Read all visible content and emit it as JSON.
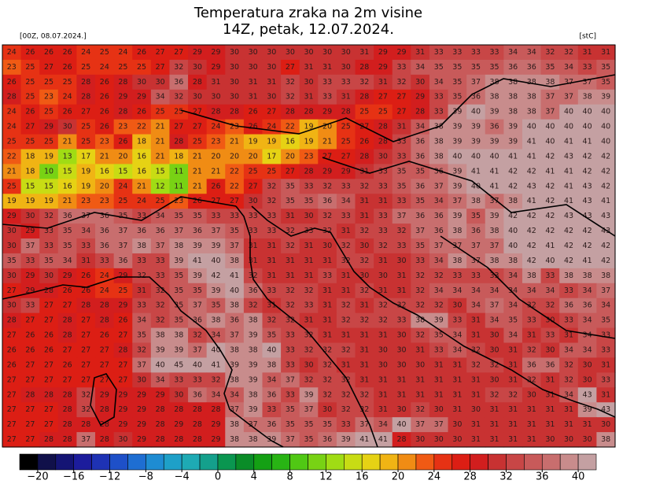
{
  "header": {
    "title_line1": "Temperatura zraka na 2m visine",
    "title_line2": "14Z, petak, 12.07.2024.",
    "run_label": "[00Z, 08.07.2024.]",
    "unit_label": "[stC]"
  },
  "map": {
    "temperature_grid": [
      [
        24,
        26,
        26,
        26,
        24,
        25,
        24,
        26,
        27,
        27,
        29,
        29,
        30,
        30,
        30,
        30,
        30,
        30,
        30,
        31,
        29,
        29,
        31,
        33,
        33,
        33,
        33,
        34,
        34,
        32,
        32,
        31,
        31
      ],
      [
        23,
        25,
        27,
        26,
        25,
        24,
        25,
        25,
        27,
        32,
        30,
        29,
        30,
        30,
        30,
        27,
        31,
        31,
        30,
        28,
        29,
        33,
        34,
        35,
        35,
        35,
        35,
        36,
        36,
        35,
        34,
        33,
        35
      ],
      [
        26,
        25,
        25,
        25,
        28,
        26,
        28,
        30,
        30,
        36,
        28,
        31,
        30,
        31,
        31,
        32,
        30,
        33,
        33,
        32,
        31,
        32,
        30,
        34,
        35,
        37,
        38,
        38,
        38,
        38,
        37,
        37,
        35
      ],
      [
        28,
        25,
        23,
        24,
        28,
        26,
        29,
        29,
        34,
        32,
        30,
        30,
        30,
        31,
        30,
        32,
        31,
        33,
        31,
        28,
        27,
        27,
        29,
        33,
        35,
        36,
        38,
        38,
        38,
        37,
        37,
        38,
        39
      ],
      [
        24,
        26,
        25,
        26,
        27,
        26,
        28,
        26,
        25,
        25,
        27,
        28,
        28,
        26,
        27,
        28,
        28,
        29,
        28,
        25,
        25,
        27,
        28,
        33,
        39,
        40,
        39,
        38,
        38,
        37,
        40,
        40,
        40
      ],
      [
        24,
        27,
        29,
        30,
        25,
        26,
        23,
        22,
        21,
        27,
        27,
        24,
        23,
        26,
        24,
        22,
        19,
        20,
        25,
        27,
        28,
        31,
        34,
        38,
        39,
        39,
        36,
        39,
        40,
        40,
        40,
        40,
        40
      ],
      [
        25,
        25,
        25,
        21,
        25,
        23,
        26,
        18,
        21,
        28,
        25,
        23,
        21,
        19,
        19,
        16,
        19,
        21,
        25,
        26,
        28,
        33,
        36,
        38,
        39,
        39,
        39,
        39,
        41,
        40,
        41,
        41,
        40
      ],
      [
        22,
        18,
        19,
        13,
        17,
        21,
        20,
        16,
        21,
        18,
        21,
        20,
        20,
        20,
        17,
        20,
        23,
        27,
        27,
        28,
        30,
        33,
        36,
        38,
        40,
        40,
        40,
        41,
        41,
        42,
        43,
        42,
        42
      ],
      [
        21,
        18,
        10,
        15,
        19,
        16,
        15,
        16,
        15,
        11,
        21,
        21,
        22,
        25,
        25,
        27,
        28,
        29,
        29,
        31,
        33,
        35,
        35,
        36,
        39,
        41,
        41,
        42,
        42,
        41,
        41,
        42,
        42
      ],
      [
        25,
        15,
        15,
        16,
        19,
        20,
        24,
        21,
        12,
        11,
        21,
        26,
        22,
        27,
        32,
        35,
        33,
        32,
        33,
        32,
        33,
        35,
        36,
        37,
        39,
        40,
        41,
        42,
        43,
        42,
        41,
        43,
        42
      ],
      [
        19,
        19,
        19,
        21,
        23,
        23,
        25,
        24,
        25,
        23,
        26,
        27,
        27,
        30,
        32,
        35,
        35,
        36,
        34,
        31,
        31,
        33,
        35,
        34,
        37,
        38,
        37,
        38,
        41,
        42,
        41,
        43,
        41
      ],
      [
        29,
        30,
        32,
        36,
        37,
        36,
        35,
        33,
        34,
        35,
        35,
        33,
        33,
        33,
        33,
        31,
        30,
        32,
        33,
        31,
        33,
        37,
        36,
        36,
        39,
        35,
        39,
        42,
        42,
        42,
        43,
        43,
        43
      ],
      [
        30,
        29,
        33,
        35,
        34,
        36,
        37,
        36,
        36,
        37,
        36,
        37,
        35,
        33,
        33,
        32,
        33,
        32,
        31,
        32,
        33,
        32,
        37,
        36,
        38,
        36,
        38,
        40,
        42,
        42,
        42,
        42,
        43
      ],
      [
        30,
        37,
        33,
        35,
        33,
        36,
        37,
        38,
        37,
        38,
        39,
        39,
        37,
        31,
        31,
        32,
        31,
        30,
        32,
        30,
        32,
        33,
        35,
        37,
        37,
        37,
        37,
        40,
        42,
        41,
        42,
        42,
        42
      ],
      [
        35,
        33,
        35,
        34,
        31,
        33,
        36,
        33,
        33,
        39,
        41,
        40,
        38,
        31,
        31,
        31,
        31,
        31,
        32,
        32,
        31,
        30,
        33,
        34,
        38,
        37,
        38,
        38,
        42,
        40,
        42,
        41,
        42
      ],
      [
        30,
        29,
        30,
        29,
        26,
        24,
        29,
        32,
        33,
        35,
        39,
        42,
        41,
        32,
        31,
        31,
        31,
        33,
        31,
        30,
        30,
        31,
        32,
        32,
        33,
        33,
        33,
        34,
        38,
        33,
        38,
        38,
        38
      ],
      [
        27,
        29,
        28,
        26,
        26,
        24,
        25,
        31,
        32,
        35,
        35,
        39,
        40,
        36,
        33,
        32,
        32,
        31,
        31,
        32,
        31,
        31,
        32,
        34,
        34,
        34,
        34,
        34,
        34,
        34,
        33,
        34,
        37
      ],
      [
        30,
        33,
        27,
        27,
        28,
        28,
        29,
        33,
        32,
        35,
        37,
        35,
        38,
        32,
        31,
        32,
        33,
        31,
        32,
        31,
        32,
        32,
        32,
        32,
        30,
        34,
        37,
        34,
        32,
        32,
        36,
        36,
        34
      ],
      [
        28,
        27,
        27,
        28,
        27,
        28,
        26,
        34,
        32,
        35,
        36,
        38,
        36,
        38,
        32,
        32,
        31,
        31,
        32,
        32,
        32,
        33,
        38,
        39,
        33,
        31,
        34,
        35,
        33,
        30,
        33,
        34,
        35
      ],
      [
        27,
        26,
        26,
        28,
        27,
        26,
        27,
        35,
        38,
        38,
        32,
        34,
        37,
        39,
        35,
        33,
        32,
        31,
        31,
        31,
        31,
        30,
        32,
        35,
        34,
        31,
        30,
        34,
        31,
        33,
        31,
        34,
        33
      ],
      [
        26,
        26,
        26,
        27,
        27,
        27,
        28,
        32,
        39,
        39,
        37,
        40,
        38,
        38,
        40,
        33,
        32,
        32,
        32,
        31,
        30,
        30,
        31,
        33,
        34,
        32,
        30,
        31,
        32,
        30,
        34,
        34,
        33
      ],
      [
        26,
        27,
        27,
        26,
        27,
        27,
        27,
        37,
        40,
        45,
        40,
        41,
        39,
        39,
        38,
        33,
        30,
        32,
        31,
        31,
        30,
        30,
        30,
        31,
        31,
        32,
        32,
        31,
        36,
        36,
        32,
        30,
        31
      ],
      [
        27,
        27,
        27,
        27,
        27,
        27,
        27,
        30,
        34,
        33,
        33,
        32,
        38,
        39,
        34,
        37,
        32,
        32,
        32,
        31,
        31,
        31,
        31,
        31,
        31,
        31,
        30,
        31,
        32,
        31,
        32,
        30,
        33
      ],
      [
        27,
        28,
        28,
        28,
        32,
        29,
        29,
        29,
        29,
        30,
        36,
        34,
        34,
        38,
        36,
        33,
        39,
        32,
        32,
        32,
        31,
        31,
        31,
        31,
        31,
        31,
        32,
        32,
        30,
        31,
        34,
        43,
        31
      ],
      [
        27,
        27,
        27,
        28,
        32,
        28,
        29,
        29,
        28,
        28,
        28,
        28,
        37,
        39,
        33,
        35,
        37,
        30,
        32,
        32,
        31,
        30,
        32,
        30,
        31,
        30,
        31,
        31,
        31,
        31,
        31,
        39,
        43
      ],
      [
        27,
        27,
        27,
        28,
        28,
        28,
        29,
        29,
        28,
        29,
        28,
        29,
        38,
        37,
        36,
        35,
        35,
        35,
        33,
        37,
        34,
        40,
        37,
        37,
        30,
        31,
        31,
        31,
        31,
        31,
        31,
        31,
        30
      ],
      [
        27,
        27,
        28,
        28,
        37,
        28,
        30,
        29,
        28,
        28,
        28,
        29,
        38,
        38,
        39,
        37,
        35,
        36,
        39,
        41,
        41,
        28,
        30,
        30,
        30,
        31,
        31,
        31,
        31,
        30,
        30,
        30,
        38
      ]
    ]
  },
  "colorbar": {
    "ticks": [
      {
        "value": -20,
        "label": "−20"
      },
      {
        "value": -16,
        "label": "−16"
      },
      {
        "value": -12,
        "label": "−12"
      },
      {
        "value": -8,
        "label": "−8"
      },
      {
        "value": -4,
        "label": "−4"
      },
      0,
      4,
      8,
      12,
      16,
      20,
      24,
      28,
      32,
      36,
      40
    ],
    "colors": [
      "#000000",
      "#10104a",
      "#141474",
      "#1c1c9c",
      "#1e32b4",
      "#1e50c8",
      "#1e6ed2",
      "#1e8cd2",
      "#1ea0c8",
      "#1eaab4",
      "#14a08c",
      "#0a9650",
      "#0a8c28",
      "#14a014",
      "#28b414",
      "#50c814",
      "#78d214",
      "#a0dc14",
      "#c8dc14",
      "#e6d214",
      "#f0b414",
      "#f08c14",
      "#f05a14",
      "#e63214",
      "#dc1e14",
      "#d21e1e",
      "#c83232",
      "#c84646",
      "#c85a5a",
      "#c86e6e",
      "#c88c8c",
      "#c4a0a2"
    ]
  }
}
